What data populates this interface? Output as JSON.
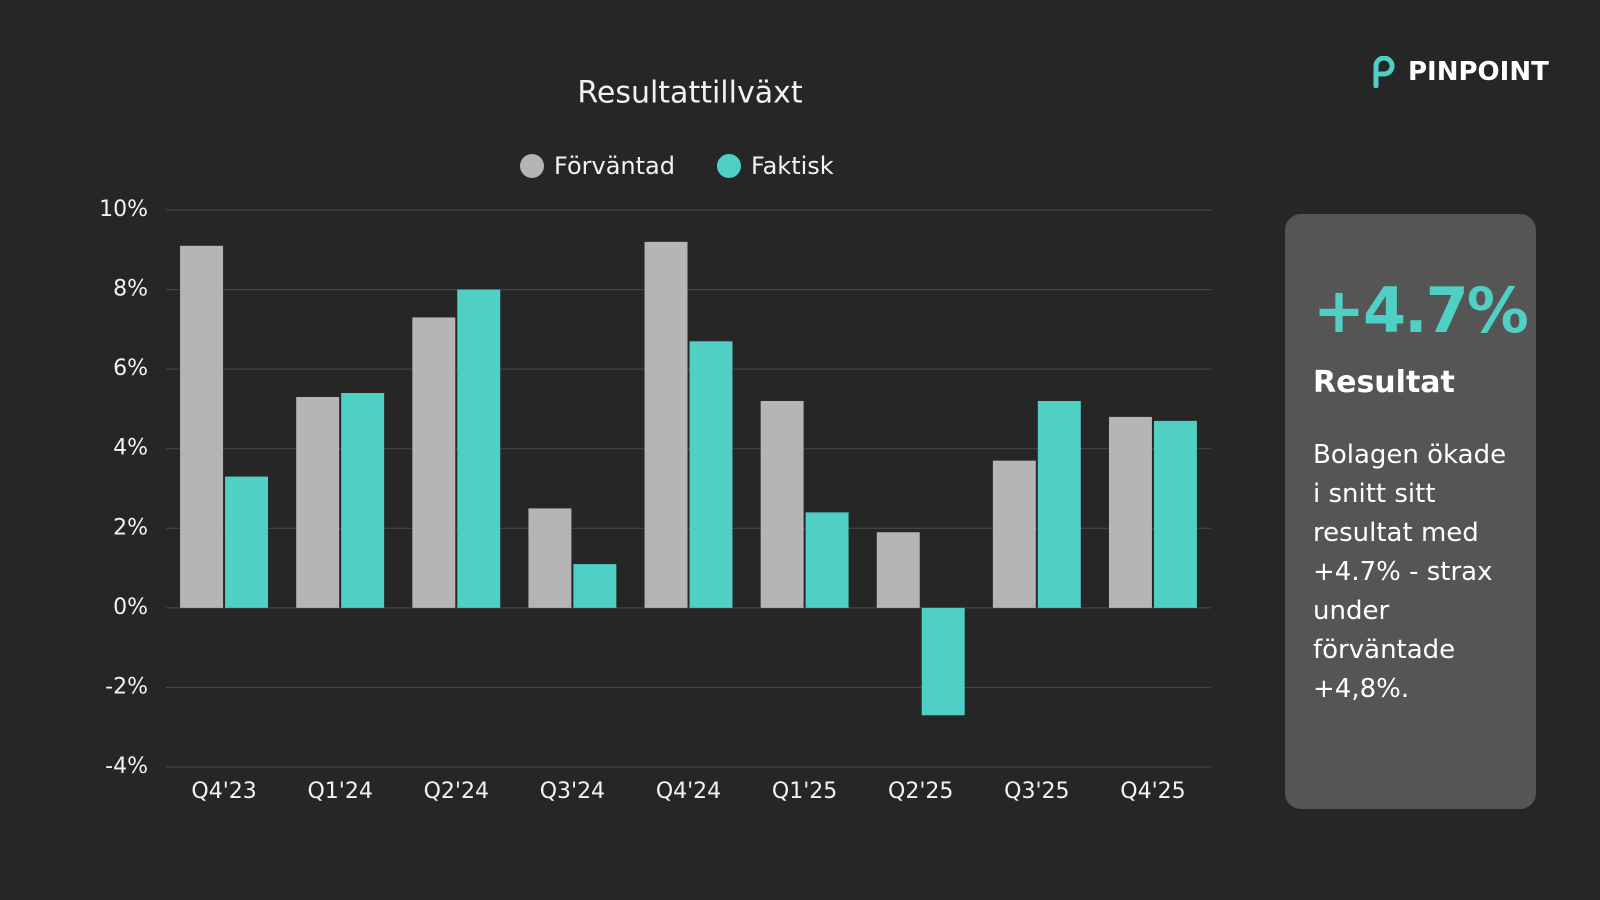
{
  "chart_data": {
    "type": "bar",
    "title": "Resultattillväxt",
    "categories": [
      "Q4'23",
      "Q1'24",
      "Q2'24",
      "Q3'24",
      "Q4'24",
      "Q1'25",
      "Q2'25",
      "Q3'25",
      "Q4'25"
    ],
    "series": [
      {
        "name": "Förväntad",
        "color": "#b5b5b5",
        "values": [
          9.1,
          5.3,
          7.3,
          2.5,
          9.2,
          5.2,
          1.9,
          3.7,
          4.8
        ]
      },
      {
        "name": "Faktisk",
        "color": "#50cfc5",
        "values": [
          3.3,
          5.4,
          8.0,
          1.1,
          6.7,
          2.4,
          -2.7,
          5.2,
          4.7
        ]
      }
    ],
    "ylim": [
      -4,
      10
    ],
    "yticks": [
      {
        "value": -4,
        "label": "-4%"
      },
      {
        "value": -2,
        "label": "-2%"
      },
      {
        "value": 0,
        "label": "0%"
      },
      {
        "value": 2,
        "label": "2%"
      },
      {
        "value": 4,
        "label": "4%"
      },
      {
        "value": 6,
        "label": "6%"
      },
      {
        "value": 8,
        "label": "8%"
      },
      {
        "value": 10,
        "label": "10%"
      }
    ],
    "grid": true,
    "legend": "top"
  },
  "card": {
    "value": "+4.7%",
    "title": "Resultat",
    "text": "Bolagen ökade i snitt sitt resultat med +4.7% - strax under förväntade +4,8%."
  },
  "logo": "PINPOINT"
}
